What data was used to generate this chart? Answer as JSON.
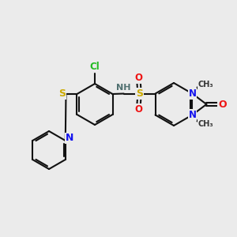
{
  "background_color": "#ebebeb",
  "bond_color": "#111111",
  "atom_colors": {
    "N": "#1414ee",
    "O": "#ee1414",
    "S": "#ccaa00",
    "Cl": "#22bb22",
    "NH": "#507070"
  },
  "lw": 1.5,
  "figsize": [
    3.0,
    3.0
  ],
  "dpi": 100
}
